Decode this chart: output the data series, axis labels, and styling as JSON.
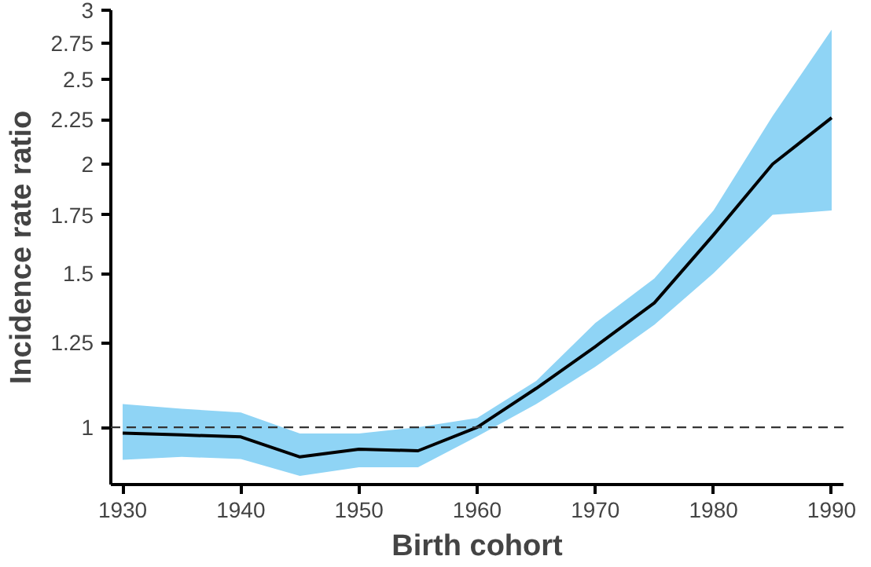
{
  "chart_data": {
    "type": "line",
    "xlabel": "Birth cohort",
    "ylabel": "Incidence rate ratio",
    "log": "y",
    "x": [
      1930,
      1935,
      1940,
      1945,
      1950,
      1955,
      1960,
      1965,
      1970,
      1975,
      1980,
      1985,
      1990
    ],
    "series": [
      {
        "color": "#000000",
        "values": [
          0.985,
          0.98,
          0.975,
          0.925,
          0.944,
          0.94,
          1.0,
          1.108,
          1.237,
          1.388,
          1.66,
          2.0,
          2.26
        ],
        "lower": [
          0.918,
          0.925,
          0.92,
          0.88,
          0.9,
          0.9,
          0.976,
          1.063,
          1.173,
          1.31,
          1.5,
          1.75,
          1.77
        ],
        "upper": [
          1.063,
          1.05,
          1.04,
          0.984,
          0.984,
          1.0,
          1.025,
          1.13,
          1.316,
          1.48,
          1.77,
          2.27,
          2.85
        ]
      }
    ],
    "xlim": [
      1929,
      1991
    ],
    "xticks": [
      1930,
      1940,
      1950,
      1960,
      1970,
      1980,
      1990
    ],
    "ylim": [
      0.86,
      3.0
    ],
    "yticks": [
      1,
      1.25,
      1.5,
      1.75,
      2,
      2.25,
      2.5,
      2.75,
      3
    ],
    "ref_lines": [
      {
        "axis": "y",
        "value": 1,
        "line_style": "dashed",
        "color": "#333333"
      }
    ],
    "grid": false,
    "marker": "none",
    "line_style": "solid"
  }
}
